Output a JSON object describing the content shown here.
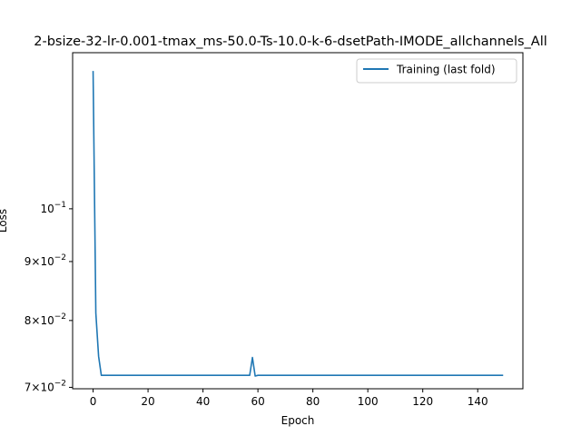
{
  "chart_data": {
    "type": "line",
    "title": "2-bsize-32-lr-0.001-tmax_ms-50.0-Ts-10.0-k-6-dsetPath-IMODE_allchannels_All",
    "xlabel": "Epoch",
    "ylabel": "Loss",
    "xlim": [
      -7.45,
      156.45
    ],
    "ylim": [
      0.0698,
      0.1366
    ],
    "yscale": "log",
    "grid": false,
    "legend_position": "top-right",
    "x_ticks": [
      {
        "value": 0,
        "label": "0"
      },
      {
        "value": 20,
        "label": "20"
      },
      {
        "value": 40,
        "label": "40"
      },
      {
        "value": 60,
        "label": "60"
      },
      {
        "value": 80,
        "label": "80"
      },
      {
        "value": 100,
        "label": "100"
      },
      {
        "value": 120,
        "label": "120"
      },
      {
        "value": 140,
        "label": "140"
      }
    ],
    "y_ticks": [
      {
        "value": 0.07,
        "mantissa": "7",
        "base": "10",
        "exp": "−2"
      },
      {
        "value": 0.08,
        "mantissa": "8",
        "base": "10",
        "exp": "−2"
      },
      {
        "value": 0.09,
        "mantissa": "9",
        "base": "10",
        "exp": "−2"
      },
      {
        "value": 0.1,
        "mantissa": "",
        "base": "10",
        "exp": "−1"
      }
    ],
    "series": [
      {
        "name": "Training (last fold)",
        "color": "#1f77b4",
        "points": [
          [
            0,
            0.1315
          ],
          [
            1,
            0.0812
          ],
          [
            2,
            0.0745
          ],
          [
            3,
            0.0717
          ],
          [
            10,
            0.0717
          ],
          [
            20,
            0.0717
          ],
          [
            30,
            0.0717
          ],
          [
            40,
            0.0717
          ],
          [
            50,
            0.0717
          ],
          [
            57,
            0.0717
          ],
          [
            58,
            0.0743
          ],
          [
            59,
            0.0716
          ],
          [
            60,
            0.0717
          ],
          [
            70,
            0.0717
          ],
          [
            80,
            0.0717
          ],
          [
            90,
            0.0717
          ],
          [
            100,
            0.0717
          ],
          [
            110,
            0.0717
          ],
          [
            120,
            0.0717
          ],
          [
            130,
            0.0717
          ],
          [
            140,
            0.0717
          ],
          [
            149,
            0.0717
          ]
        ]
      }
    ]
  }
}
